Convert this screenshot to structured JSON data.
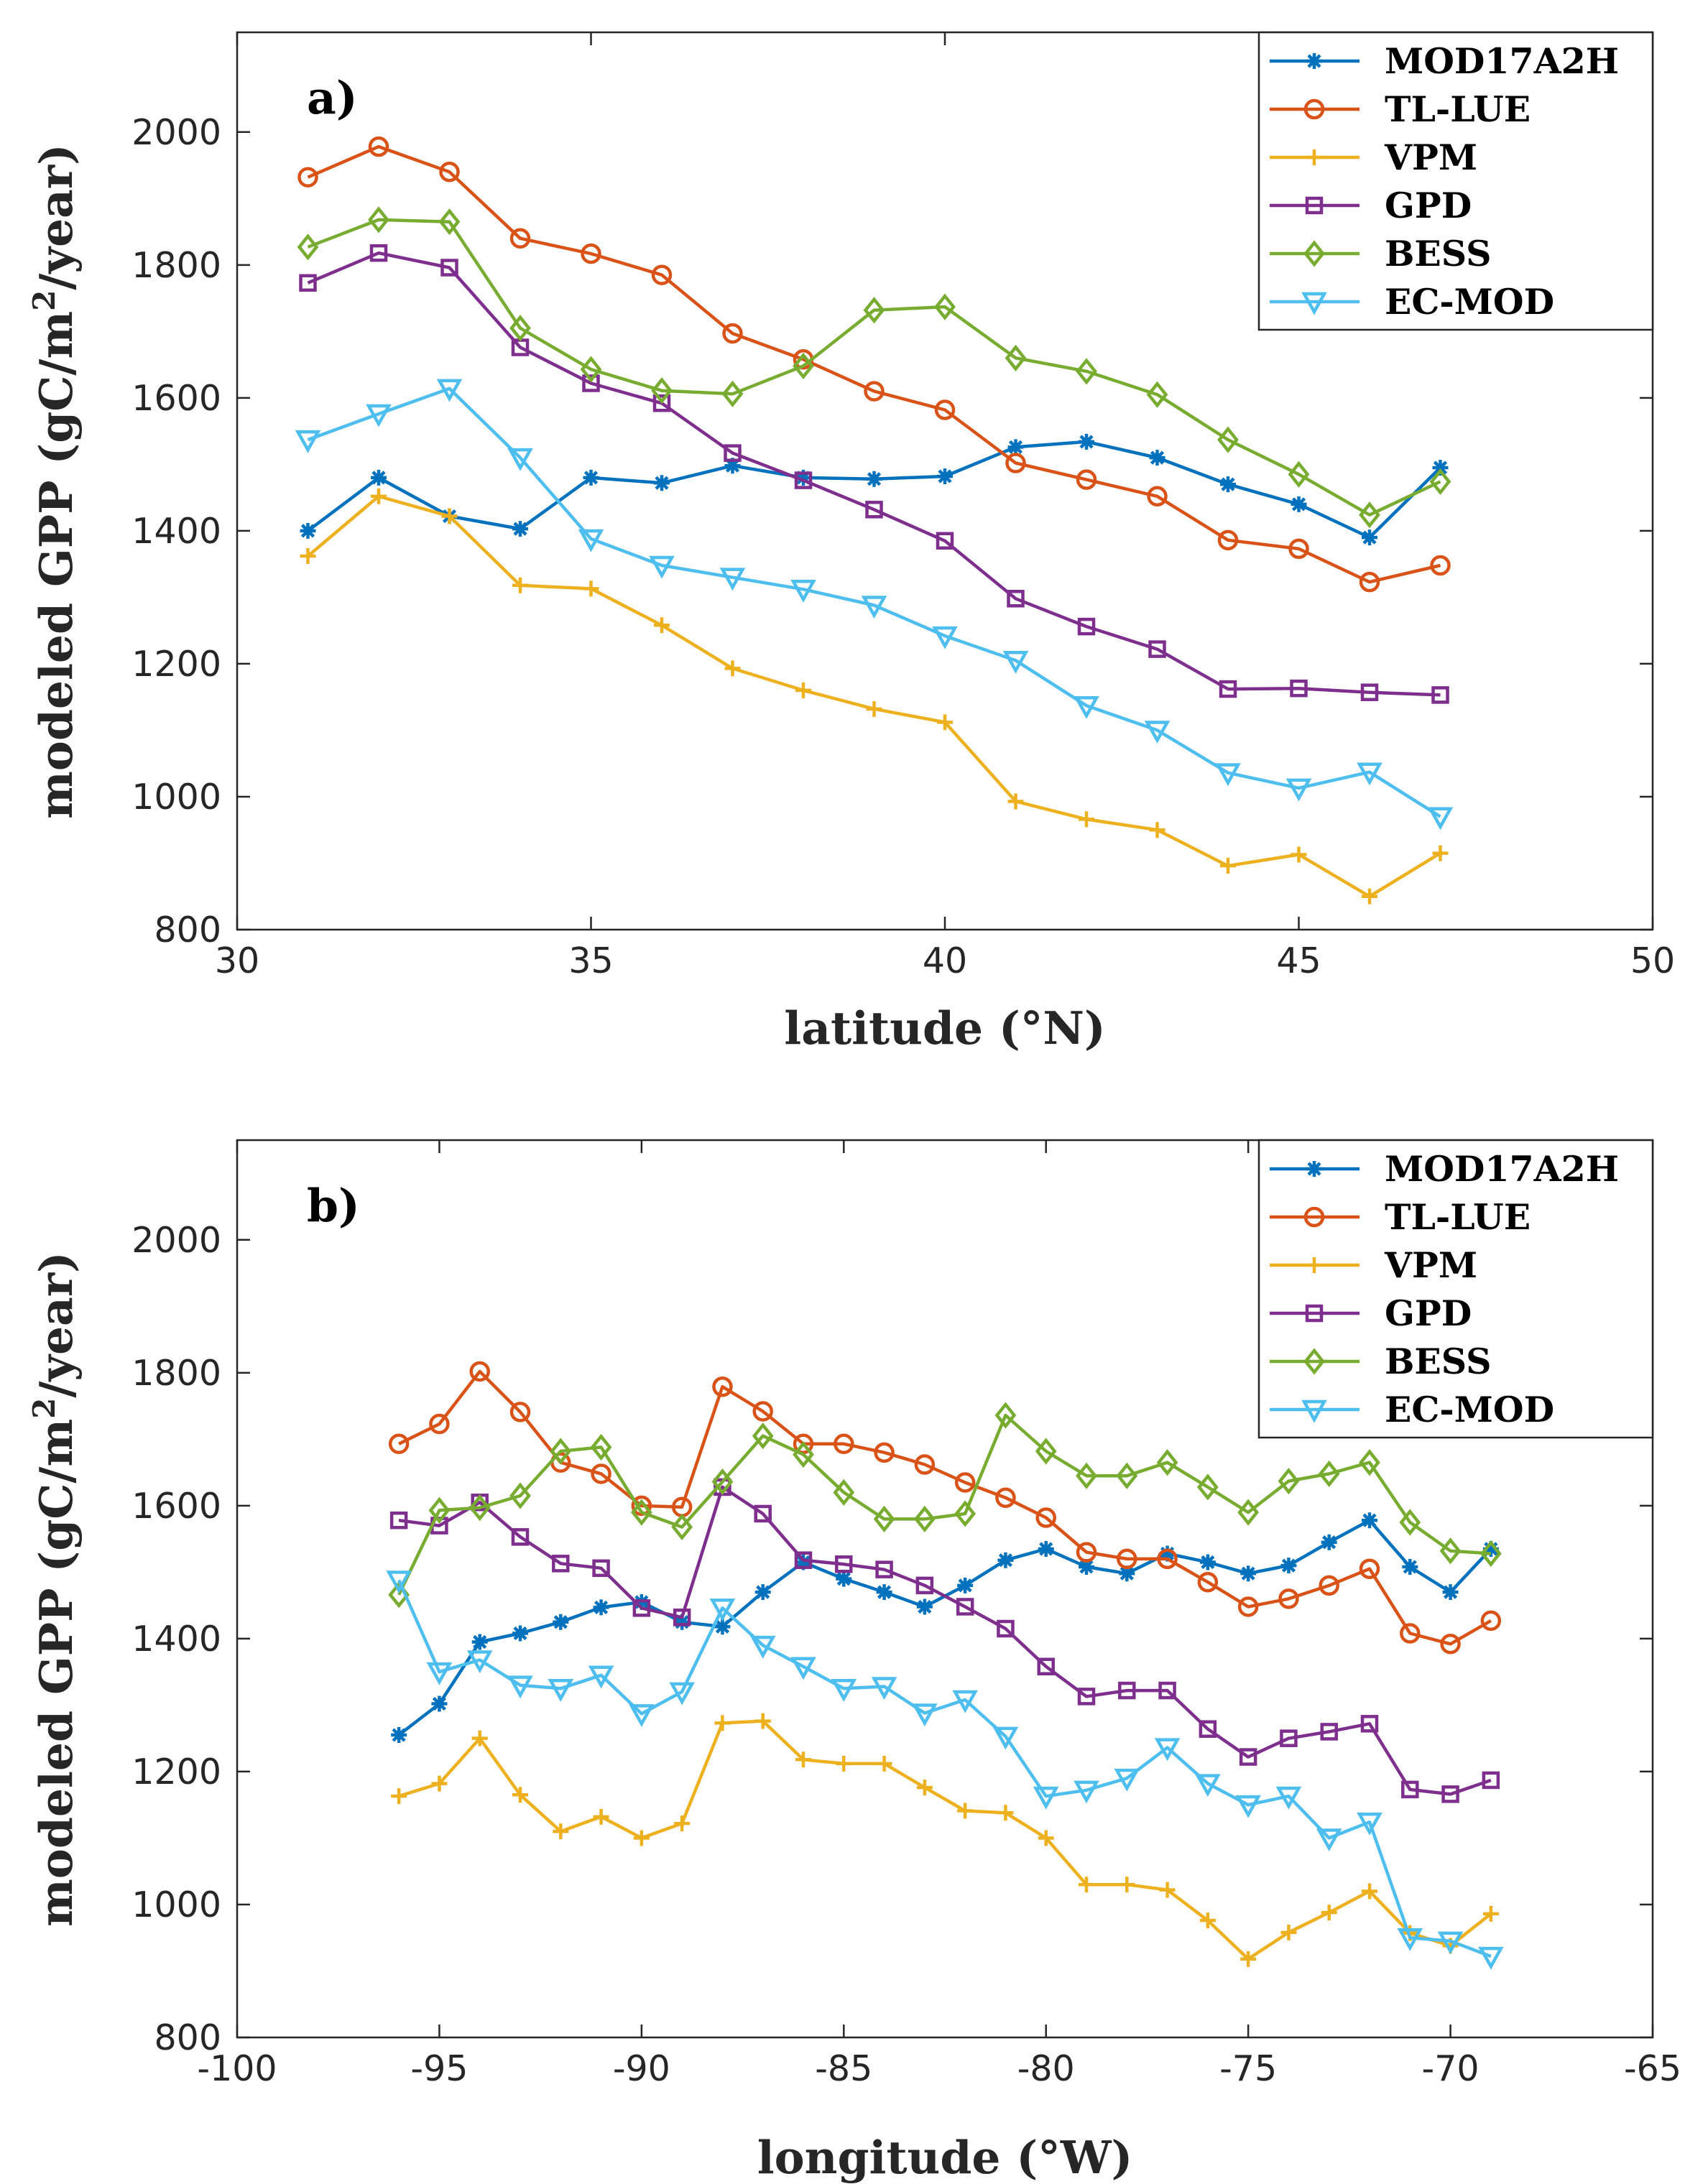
{
  "colors": {
    "MOD17A2H": "#0072BD",
    "TL-LUE": "#D95319",
    "VPM": "#EDB120",
    "GPD": "#7E2F8E",
    "BESS": "#77AC30",
    "EC-MOD": "#4DBEEE"
  },
  "markers": {
    "MOD17A2H": "asterisk",
    "TL-LUE": "circle",
    "VPM": "plus",
    "GPD": "square",
    "BESS": "diamond",
    "EC-MOD": "triangle-down"
  },
  "chart_data": [
    {
      "type": "line",
      "panel_label": "a)",
      "xlabel": "latitude (°N)",
      "ylabel_prefix": "modeled GPP (gC/m",
      "ylabel_sup": "2",
      "ylabel_suffix": "/year)",
      "xlim": [
        30,
        50
      ],
      "ylim": [
        800,
        2150
      ],
      "xticks": [
        30,
        35,
        40,
        45,
        50
      ],
      "yticks": [
        800,
        1000,
        1200,
        1400,
        1600,
        1800,
        2000
      ],
      "legend_position": "top-right",
      "x": [
        31,
        32,
        33,
        34,
        35,
        36,
        37,
        38,
        39,
        40,
        41,
        42,
        43,
        44,
        45,
        46,
        47
      ],
      "series": [
        {
          "name": "MOD17A2H",
          "values": [
            1400,
            1480,
            1422,
            1403,
            1480,
            1472,
            1498,
            1480,
            1478,
            1482,
            1526,
            1534,
            1510,
            1470,
            1440,
            1390,
            1495
          ]
        },
        {
          "name": "TL-LUE",
          "values": [
            1932,
            1978,
            1940,
            1840,
            1817,
            1785,
            1697,
            1658,
            1610,
            1582,
            1502,
            1477,
            1452,
            1386,
            1373,
            1323,
            1348
          ]
        },
        {
          "name": "VPM",
          "values": [
            1362,
            1452,
            1422,
            1318,
            1313,
            1258,
            1193,
            1160,
            1132,
            1112,
            993,
            966,
            950,
            896,
            913,
            850,
            915
          ]
        },
        {
          "name": "GPD",
          "values": [
            1773,
            1818,
            1796,
            1676,
            1622,
            1592,
            1517,
            1476,
            1432,
            1385,
            1298,
            1256,
            1222,
            1162,
            1163,
            1157,
            1153
          ]
        },
        {
          "name": "BESS",
          "values": [
            1827,
            1868,
            1865,
            1705,
            1643,
            1611,
            1606,
            1648,
            1732,
            1737,
            1660,
            1640,
            1605,
            1537,
            1485,
            1424,
            1474
          ]
        },
        {
          "name": "EC-MOD",
          "values": [
            1537,
            1576,
            1614,
            1510,
            1388,
            1348,
            1330,
            1312,
            1288,
            1242,
            1205,
            1137,
            1100,
            1036,
            1013,
            1037,
            970
          ]
        }
      ]
    },
    {
      "type": "line",
      "panel_label": "b)",
      "xlabel": "longitude (°W)",
      "ylabel_prefix": "modeled GPP (gC/m",
      "ylabel_sup": "2",
      "ylabel_suffix": "/year)",
      "xlim": [
        -100,
        -65
      ],
      "ylim": [
        800,
        2150
      ],
      "xticks": [
        -100,
        -95,
        -90,
        -85,
        -80,
        -75,
        -70,
        -65
      ],
      "yticks": [
        800,
        1000,
        1200,
        1400,
        1600,
        1800,
        2000
      ],
      "legend_position": "top-right",
      "x": [
        -96,
        -95,
        -94,
        -93,
        -92,
        -91,
        -90,
        -89,
        -88,
        -87,
        -86,
        -85,
        -84,
        -83,
        -82,
        -81,
        -80,
        -79,
        -78,
        -77,
        -76,
        -75,
        -74,
        -73,
        -72,
        -71,
        -70,
        -69
      ],
      "series": [
        {
          "name": "MOD17A2H",
          "values": [
            1255,
            1302,
            1395,
            1408,
            1425,
            1447,
            1455,
            1425,
            1418,
            1470,
            1515,
            1490,
            1470,
            1448,
            1480,
            1518,
            1535,
            1508,
            1498,
            1528,
            1515,
            1498,
            1510,
            1545,
            1578,
            1508,
            1470,
            1535
          ]
        },
        {
          "name": "TL-LUE",
          "values": [
            1693,
            1723,
            1802,
            1741,
            1665,
            1648,
            1600,
            1598,
            1779,
            1742,
            1693,
            1693,
            1680,
            1662,
            1635,
            1612,
            1582,
            1530,
            1520,
            1520,
            1485,
            1448,
            1460,
            1480,
            1505,
            1408,
            1392,
            1427
          ]
        },
        {
          "name": "VPM",
          "values": [
            1163,
            1182,
            1250,
            1165,
            1110,
            1132,
            1100,
            1122,
            1273,
            1276,
            1218,
            1212,
            1212,
            1176,
            1141,
            1138,
            1100,
            1030,
            1030,
            1022,
            976,
            918,
            958,
            988,
            1020,
            957,
            938,
            986
          ]
        },
        {
          "name": "GPD",
          "values": [
            1578,
            1570,
            1605,
            1553,
            1513,
            1506,
            1446,
            1432,
            1628,
            1588,
            1518,
            1512,
            1504,
            1480,
            1448,
            1415,
            1358,
            1313,
            1322,
            1322,
            1264,
            1222,
            1250,
            1260,
            1272,
            1173,
            1166,
            1187
          ]
        },
        {
          "name": "BESS",
          "values": [
            1466,
            1593,
            1597,
            1615,
            1682,
            1688,
            1590,
            1568,
            1636,
            1705,
            1677,
            1620,
            1580,
            1580,
            1588,
            1736,
            1682,
            1645,
            1645,
            1665,
            1628,
            1590,
            1637,
            1648,
            1665,
            1575,
            1532,
            1528
          ]
        },
        {
          "name": "EC-MOD",
          "values": [
            1488,
            1350,
            1368,
            1330,
            1325,
            1345,
            1287,
            1320,
            1446,
            1390,
            1358,
            1325,
            1328,
            1288,
            1308,
            1253,
            1163,
            1172,
            1190,
            1236,
            1182,
            1150,
            1163,
            1100,
            1124,
            950,
            945,
            922
          ]
        }
      ]
    }
  ]
}
